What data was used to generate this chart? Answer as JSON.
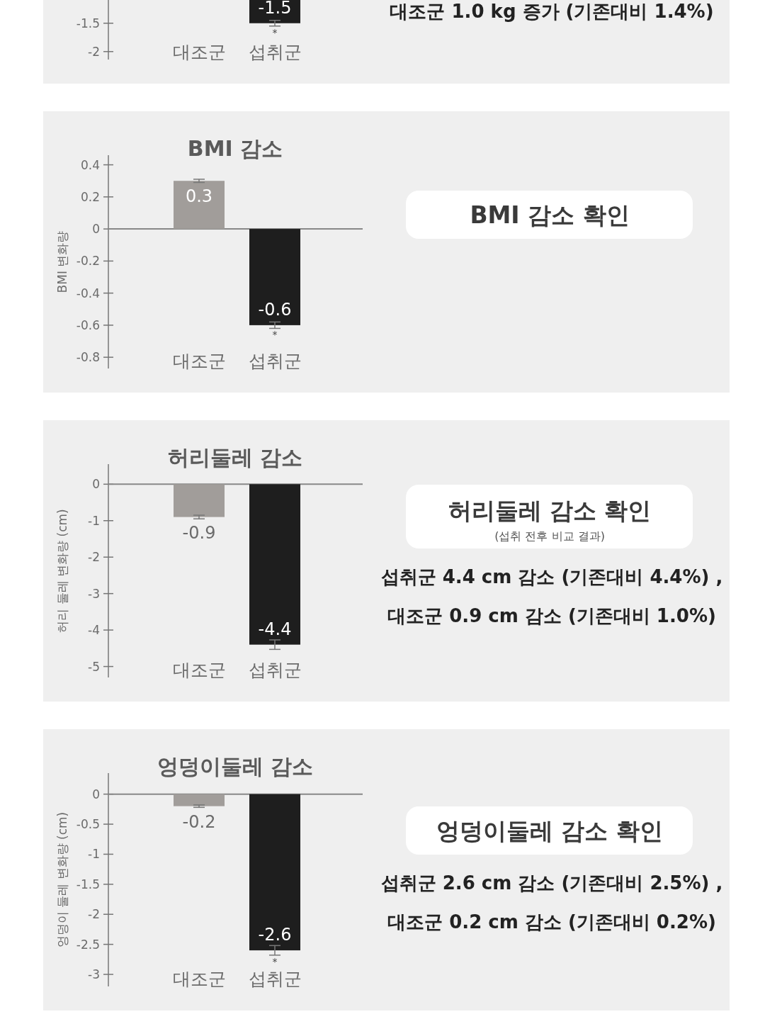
{
  "chart_data": [
    {
      "type": "bar",
      "categories": [
        "대조군",
        "섭취군"
      ],
      "colors": [
        "#a19d9a",
        "#1e1e1e"
      ],
      "values": [
        null,
        -1.5
      ],
      "errors": [
        null,
        0.05
      ],
      "data_labels": true,
      "ylim": [
        -2.14,
        1.62
      ],
      "yticks": [
        -1.5,
        -2
      ],
      "annotations": [
        {
          "text": "*",
          "x": "섭취군",
          "y": -1.5
        },
        "대조군 1.0 kg 증가 (기존대비 1.4%)"
      ]
    },
    {
      "type": "bar",
      "title": "BMI 감소",
      "ylabel": "BMI 변화량",
      "categories": [
        "대조군",
        "섭취군"
      ],
      "colors": [
        "#a19d9a",
        "#1e1e1e"
      ],
      "values": [
        0.3,
        -0.6
      ],
      "errors": [
        0.01,
        0.02
      ],
      "data_labels": true,
      "ylim": [
        -0.87,
        0.46
      ],
      "yticks": [
        0.4,
        0.2,
        0,
        -0.2,
        -0.4,
        -0.6,
        -0.8
      ],
      "annotations": [
        {
          "text": "*",
          "x": "섭취군",
          "y": -0.6
        },
        "BMI 감소 확인"
      ]
    },
    {
      "type": "bar",
      "title": "허리둘레 감소",
      "ylabel": "허리 둘레 변화량 (cm)",
      "categories": [
        "대조군",
        "섭취군"
      ],
      "colors": [
        "#a19d9a",
        "#1e1e1e"
      ],
      "values": [
        -0.9,
        -4.4
      ],
      "errors": [
        0.05,
        0.13
      ],
      "data_labels": true,
      "ylim": [
        -5.3,
        0.55
      ],
      "yticks": [
        0,
        -1,
        -2,
        -3,
        -4,
        -5
      ],
      "annotations": [
        "허리둘레 감소 확인\n(섭취 전후 비교 결과)",
        "섭취군 4.4 cm 감소 (기존대비 4.4%) ,",
        "대조군 0.9 cm 감소 (기존대비 1.0%)"
      ]
    },
    {
      "type": "bar",
      "title": "엉덩이둘레 감소",
      "ylabel": "엉덩이 둘레 변화량 (cm)",
      "categories": [
        "대조군",
        "섭취군"
      ],
      "colors": [
        "#a19d9a",
        "#1e1e1e"
      ],
      "values": [
        -0.2,
        -2.6
      ],
      "errors": [
        0.02,
        0.08
      ],
      "data_labels": true,
      "ylim": [
        -3.2,
        0.35
      ],
      "yticks": [
        0,
        -0.5,
        -1,
        -1.5,
        -2,
        -2.5,
        -3
      ],
      "annotations": [
        {
          "text": "*",
          "x": "섭취군",
          "y": -2.6
        },
        "엉덩이둘레 감소 확인",
        "섭취군 2.6 cm 감소 (기존대비 2.5%) ,",
        "대조군 0.2 cm 감소 (기존대비 0.2%)"
      ]
    }
  ]
}
